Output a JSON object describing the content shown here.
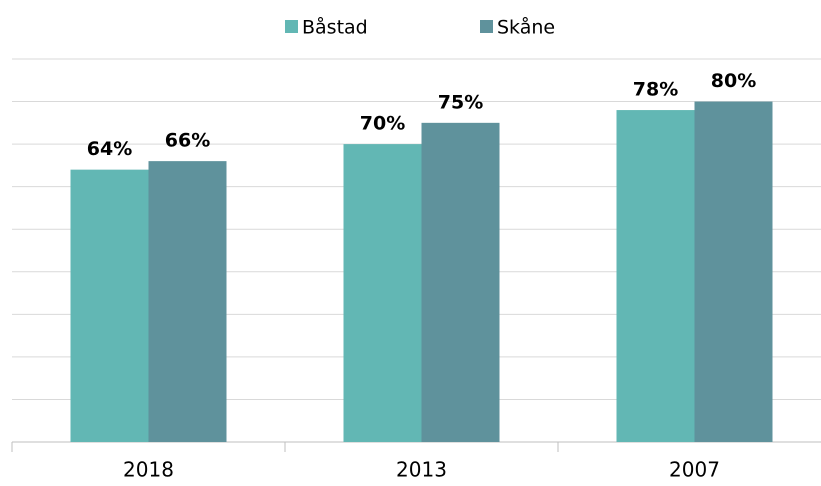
{
  "chart_data": {
    "type": "bar",
    "categories": [
      "2018",
      "2013",
      "2007"
    ],
    "series": [
      {
        "name": "Båstad",
        "color": "#62b7b4",
        "values": [
          64,
          70,
          78
        ],
        "value_labels": [
          "64%",
          "70%",
          "78%"
        ]
      },
      {
        "name": "Skåne",
        "color": "#5f929c",
        "values": [
          66,
          75,
          80
        ],
        "value_labels": [
          "66%",
          "75%",
          "80%"
        ]
      }
    ],
    "ylim": [
      0,
      90
    ],
    "yticks": [
      0,
      10,
      20,
      30,
      40,
      50,
      60,
      70,
      80,
      90
    ],
    "grid": true
  }
}
